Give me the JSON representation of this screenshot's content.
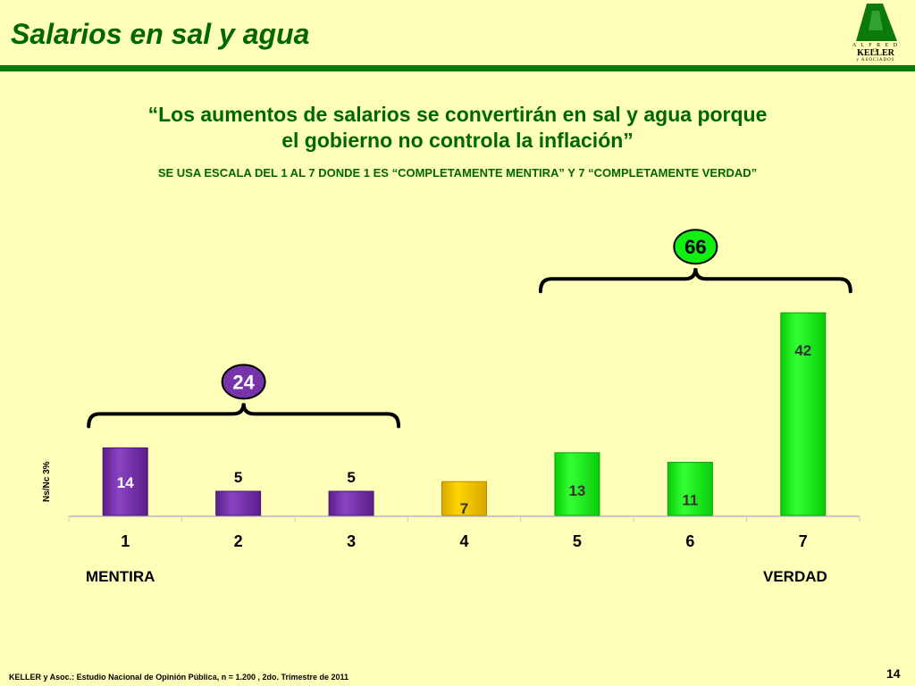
{
  "header": {
    "title": "Salarios en sal y agua"
  },
  "logo": {
    "top": "A L F R E D O",
    "main": "KELLER",
    "bottom": "y ASOCIADOS"
  },
  "quote": {
    "line1": "“Los aumentos de salarios se convertirán en sal y agua porque",
    "line2": "el gobierno no controla la inflación”"
  },
  "scale_note": "SE USA ESCALA DEL 1 AL 7 DONDE 1 ES “COMPLETAMENTE MENTIRA” Y 7 “COMPLETAMENTE VERDAD”",
  "ns_label": "Ns/Nc  3%",
  "labels": {
    "left": "MENTIRA",
    "right": "VERDAD"
  },
  "footer": "KELLER y Asoc.: Estudio Nacional de Opinión Pública, n = 1.200 , 2do. Trimestre de 2011",
  "page_number": "14",
  "colors": {
    "background": "#FFFFB9",
    "title": "#006600",
    "rule": "#0B7A0B",
    "mentira": "#7733AA",
    "neutral": "#F2C800",
    "verdad": "#11EE11"
  },
  "chart_data": {
    "type": "bar",
    "categories": [
      "1",
      "2",
      "3",
      "4",
      "5",
      "6",
      "7"
    ],
    "values": [
      14,
      5,
      5,
      7,
      13,
      11,
      42
    ],
    "bar_groups": [
      "mentira",
      "mentira",
      "mentira",
      "neutral",
      "verdad",
      "verdad",
      "verdad"
    ],
    "ylim": [
      0,
      45
    ],
    "grid": false,
    "group_totals": [
      {
        "label": "24",
        "from": 0,
        "to": 2,
        "color": "#7733AA",
        "text_color": "#FFFFFF"
      },
      {
        "label": "66",
        "from": 4,
        "to": 6,
        "color": "#11EE11",
        "text_color": "#000000"
      }
    ]
  }
}
